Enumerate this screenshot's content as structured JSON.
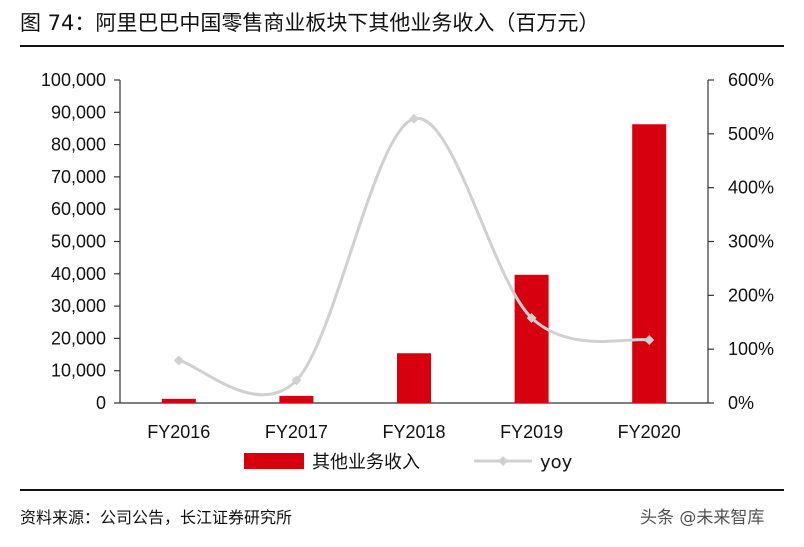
{
  "header": {
    "title": "图 74：阿里巴巴中国零售商业板块下其他业务收入（百万元）"
  },
  "footer": {
    "source": "资料来源：公司公告，长江证券研究所",
    "watermark": "头条 @未来智库"
  },
  "colors": {
    "bar": "#d7000f",
    "line": "#d0d0d0",
    "axis": "#333333"
  },
  "chart_data": {
    "type": "bar",
    "categories": [
      "FY2016",
      "FY2017",
      "FY2018",
      "FY2019",
      "FY2020"
    ],
    "series": [
      {
        "name": "其他业务收入",
        "type": "bar",
        "axis": "left",
        "values": [
          1300,
          2200,
          15400,
          39700,
          86300
        ]
      },
      {
        "name": "yoy",
        "type": "line",
        "axis": "right",
        "values": [
          0.79,
          0.42,
          5.28,
          1.58,
          1.17
        ]
      }
    ],
    "left_axis": {
      "ylim": [
        0,
        100000
      ],
      "ticks": [
        0,
        10000,
        20000,
        30000,
        40000,
        50000,
        60000,
        70000,
        80000,
        90000,
        100000
      ],
      "tick_labels": [
        "0",
        "10,000",
        "20,000",
        "30,000",
        "40,000",
        "50,000",
        "60,000",
        "70,000",
        "80,000",
        "90,000",
        "100,000"
      ]
    },
    "right_axis": {
      "ylim": [
        0,
        6
      ],
      "ticks": [
        0,
        1,
        2,
        3,
        4,
        5,
        6
      ],
      "tick_labels": [
        "0%",
        "100%",
        "200%",
        "300%",
        "400%",
        "500%",
        "600%"
      ]
    },
    "grid": false,
    "legend_position": "bottom"
  }
}
